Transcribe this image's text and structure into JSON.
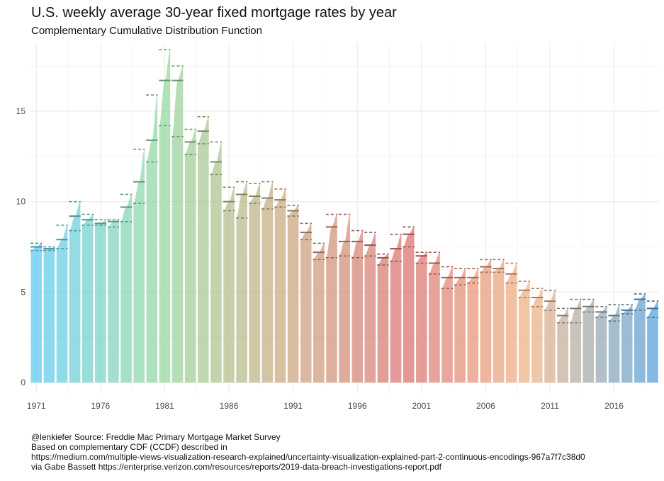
{
  "title": "U.S. weekly average 30-year fixed mortgage rates by year",
  "subtitle": "Complementary Cumulative Distribution Function",
  "caption": [
    "@lenkiefer Source: Freddie Mac Primary Mortgage Market Survey",
    "Based on complementary CDF (CCDF) described in",
    "https://medium.com/multiple-views-visualization-research-explained/uncertainty-visualization-explained-part-2-continuous-encodings-967a7f7c38d0",
    "via Gabe Bassett https://enterprise.verizon.com/resources/reports/2019-data-breach-investigations-report.pdf"
  ],
  "chart_data": {
    "type": "area",
    "description_of_marks": "one CCDF area per year; dashes mark min, median and max",
    "x_tick_labels": [
      "1971",
      "1976",
      "1981",
      "1986",
      "1991",
      "1996",
      "2001",
      "2006",
      "2011",
      "2016"
    ],
    "y_tick_labels": [
      "0",
      "5",
      "10",
      "15"
    ],
    "ylim": [
      0,
      18.8
    ],
    "xlim": [
      1970.6,
      2019.5
    ],
    "grid": true,
    "legend": "none",
    "years": [
      1971,
      1972,
      1973,
      1974,
      1975,
      1976,
      1977,
      1978,
      1979,
      1980,
      1981,
      1982,
      1983,
      1984,
      1985,
      1986,
      1987,
      1988,
      1989,
      1990,
      1991,
      1992,
      1993,
      1994,
      1995,
      1996,
      1997,
      1998,
      1999,
      2000,
      2001,
      2002,
      2003,
      2004,
      2005,
      2006,
      2007,
      2008,
      2009,
      2010,
      2011,
      2012,
      2013,
      2014,
      2015,
      2016,
      2017,
      2018,
      2019
    ],
    "min": [
      7.3,
      7.3,
      7.4,
      8.4,
      8.7,
      8.7,
      8.6,
      8.9,
      9.9,
      12.2,
      14.2,
      13.6,
      12.6,
      13.2,
      11.5,
      9.5,
      9.1,
      9.9,
      9.6,
      9.7,
      9.2,
      7.9,
      6.8,
      6.9,
      7.0,
      6.9,
      7.0,
      6.5,
      6.7,
      7.5,
      6.6,
      6.0,
      5.2,
      5.4,
      5.5,
      6.1,
      6.1,
      5.5,
      4.7,
      4.2,
      4.0,
      3.3,
      3.3,
      3.9,
      3.6,
      3.4,
      3.8,
      4.0,
      3.6
    ],
    "median": [
      7.5,
      7.4,
      7.9,
      9.2,
      9.0,
      8.8,
      8.9,
      9.7,
      11.1,
      13.4,
      16.7,
      16.7,
      13.3,
      13.9,
      12.2,
      10.0,
      10.4,
      10.3,
      10.2,
      10.1,
      9.5,
      8.3,
      7.2,
      8.6,
      7.8,
      7.8,
      7.6,
      6.9,
      7.4,
      8.2,
      7.0,
      6.6,
      5.8,
      5.8,
      5.8,
      6.4,
      6.3,
      6.0,
      5.1,
      4.7,
      4.5,
      3.7,
      4.1,
      4.2,
      3.9,
      3.7,
      4.0,
      4.6,
      4.1
    ],
    "max": [
      7.7,
      7.5,
      8.7,
      10.0,
      9.3,
      9.0,
      9.0,
      10.4,
      12.9,
      15.9,
      18.4,
      17.5,
      14.0,
      14.7,
      13.3,
      10.8,
      11.1,
      11.0,
      11.1,
      10.7,
      9.8,
      8.8,
      7.7,
      9.3,
      9.3,
      8.4,
      8.3,
      7.1,
      8.2,
      8.6,
      7.2,
      7.2,
      6.4,
      6.3,
      6.3,
      6.8,
      6.8,
      6.6,
      5.6,
      5.2,
      5.1,
      4.1,
      4.6,
      4.6,
      4.2,
      4.3,
      4.3,
      4.9,
      4.5
    ],
    "colors": [
      "#56c8f0",
      "#8fd79a",
      "#c8a67a",
      "#d96a6a",
      "#f0b07c",
      "#4f9bd6"
    ]
  }
}
